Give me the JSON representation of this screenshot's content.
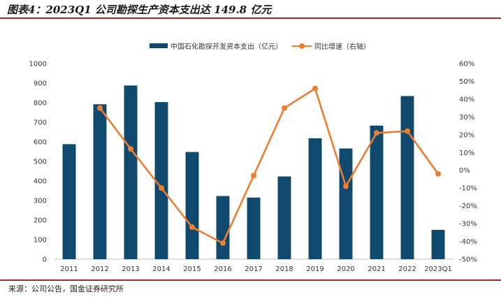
{
  "title": "图表4：2023Q1 公司勘探生产资本支出达 149.8 亿元",
  "source": "来源：公司公告，国金证券研究所",
  "colors": {
    "bar": "#0f4a6e",
    "line": "#ed7d31",
    "rule": "#9c2b28"
  },
  "chart_data": {
    "type": "bar",
    "categories": [
      "2011",
      "2012",
      "2013",
      "2014",
      "2015",
      "2016",
      "2017",
      "2018",
      "2019",
      "2020",
      "2021",
      "2022",
      "2023Q1"
    ],
    "series": [
      {
        "name": "中国石化勘探开发资本支出（亿元）",
        "type": "bar",
        "axis": "left",
        "values": [
          588,
          792,
          888,
          803,
          548,
          323,
          315,
          423,
          618,
          566,
          683,
          834,
          149.8
        ]
      },
      {
        "name": "同比增速（右轴）",
        "type": "line",
        "axis": "right",
        "values": [
          null,
          35,
          12,
          -10,
          -32,
          -41,
          -3,
          35,
          46,
          -9,
          21,
          22,
          -2
        ]
      }
    ],
    "left_axis": {
      "min": 0,
      "max": 1000,
      "ticks": [
        0,
        100,
        200,
        300,
        400,
        500,
        600,
        700,
        800,
        900,
        1000
      ]
    },
    "right_axis": {
      "min": -50,
      "max": 60,
      "ticks": [
        "-50%",
        "-40%",
        "-30%",
        "-20%",
        "-10%",
        "0%",
        "10%",
        "20%",
        "30%",
        "40%",
        "50%",
        "60%"
      ]
    },
    "legend_position": "top-center",
    "grid": false
  }
}
